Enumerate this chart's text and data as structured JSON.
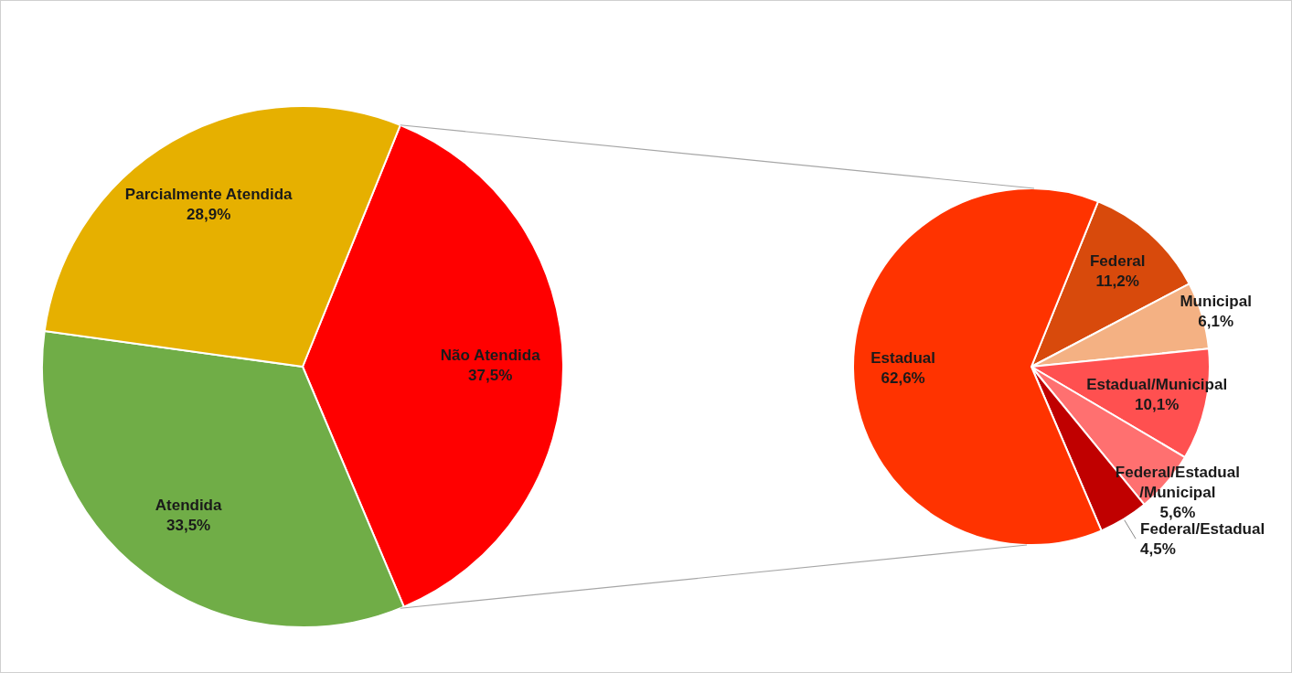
{
  "chart_data": [
    {
      "type": "pie",
      "categories": [
        "Não Atendida",
        "Atendida",
        "Parcialmente Atendida"
      ],
      "values": [
        37.5,
        33.5,
        28.9
      ],
      "colors": [
        "#ff0000",
        "#70ad47",
        "#e6b000"
      ],
      "value_labels": [
        "37,5%",
        "33,5%",
        "28,9%"
      ]
    },
    {
      "type": "pie",
      "categories": [
        "Federal",
        "Municipal",
        "Estadual/Municipal",
        "Federal/Estadual\n/Municipal",
        "Federal/Estadual",
        "Estadual"
      ],
      "values": [
        11.2,
        6.1,
        10.1,
        5.6,
        4.5,
        62.6
      ],
      "colors": [
        "#d84a0c",
        "#f4b183",
        "#ff5050",
        "#ff7070",
        "#c00000",
        "#ff3300"
      ],
      "value_labels": [
        "11,2%",
        "6,1%",
        "10,1%",
        "5,6%",
        "4,5%",
        "62,6%"
      ]
    }
  ]
}
